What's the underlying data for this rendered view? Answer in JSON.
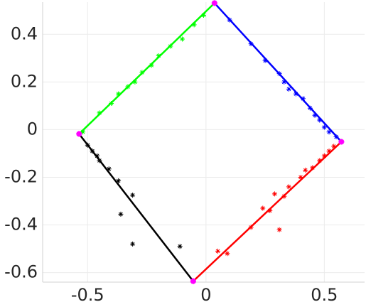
{
  "chart_data": {
    "type": "scatter",
    "xlim": [
      -0.69,
      0.67
    ],
    "ylim": [
      -0.64,
      0.535
    ],
    "xticks": [
      -0.5,
      0,
      0.5
    ],
    "yticks": [
      -0.6,
      -0.4,
      -0.2,
      0,
      0.2,
      0.4
    ],
    "grid": true,
    "lines": [
      {
        "color": "#00ff00",
        "x": [
          -0.536,
          0.036
        ],
        "y": [
          -0.018,
          0.531
        ]
      },
      {
        "color": "#0000ff",
        "x": [
          0.036,
          0.572
        ],
        "y": [
          0.531,
          -0.051
        ]
      },
      {
        "color": "#ff0000",
        "x": [
          0.572,
          -0.054
        ],
        "y": [
          -0.051,
          -0.636
        ]
      },
      {
        "color": "#000000",
        "x": [
          -0.054,
          -0.536
        ],
        "y": [
          -0.636,
          -0.018
        ]
      }
    ],
    "points": [
      {
        "color": "#00ff00",
        "x": [
          -0.52,
          -0.45,
          -0.4,
          -0.37,
          -0.33,
          -0.3,
          -0.27,
          -0.23,
          -0.2,
          -0.15,
          -0.1,
          -0.05,
          -0.01
        ],
        "y": [
          -0.01,
          0.07,
          0.11,
          0.15,
          0.18,
          0.2,
          0.24,
          0.27,
          0.31,
          0.35,
          0.38,
          0.44,
          0.48
        ]
      },
      {
        "color": "#0000ff",
        "x": [
          0.1,
          0.19,
          0.25,
          0.31,
          0.33,
          0.35,
          0.38,
          0.41,
          0.44,
          0.46,
          0.48,
          0.5,
          0.52,
          0.55
        ],
        "y": [
          0.46,
          0.36,
          0.29,
          0.235,
          0.2,
          0.17,
          0.15,
          0.13,
          0.09,
          0.06,
          0.04,
          0.01,
          -0.01,
          -0.03
        ]
      },
      {
        "color": "#ff0000",
        "x": [
          0.05,
          0.09,
          0.19,
          0.24,
          0.27,
          0.31,
          0.29,
          0.33,
          0.35,
          0.4,
          0.42,
          0.45,
          0.48,
          0.5,
          0.52,
          0.54
        ],
        "y": [
          -0.51,
          -0.52,
          -0.41,
          -0.33,
          -0.34,
          -0.42,
          -0.27,
          -0.28,
          -0.24,
          -0.2,
          -0.17,
          -0.16,
          -0.13,
          -0.11,
          -0.09,
          -0.07
        ]
      },
      {
        "color": "#000000",
        "x": [
          -0.5,
          -0.48,
          -0.46,
          -0.45,
          -0.41,
          -0.37,
          -0.31,
          -0.36,
          -0.31,
          -0.11
        ],
        "y": [
          -0.065,
          -0.09,
          -0.11,
          -0.13,
          -0.165,
          -0.215,
          -0.275,
          -0.355,
          -0.48,
          -0.49
        ]
      }
    ],
    "corners": {
      "color": "#ff00ff",
      "x": [
        0.036,
        0.572,
        -0.054,
        -0.536
      ],
      "y": [
        0.531,
        -0.051,
        -0.636,
        -0.018
      ]
    }
  }
}
